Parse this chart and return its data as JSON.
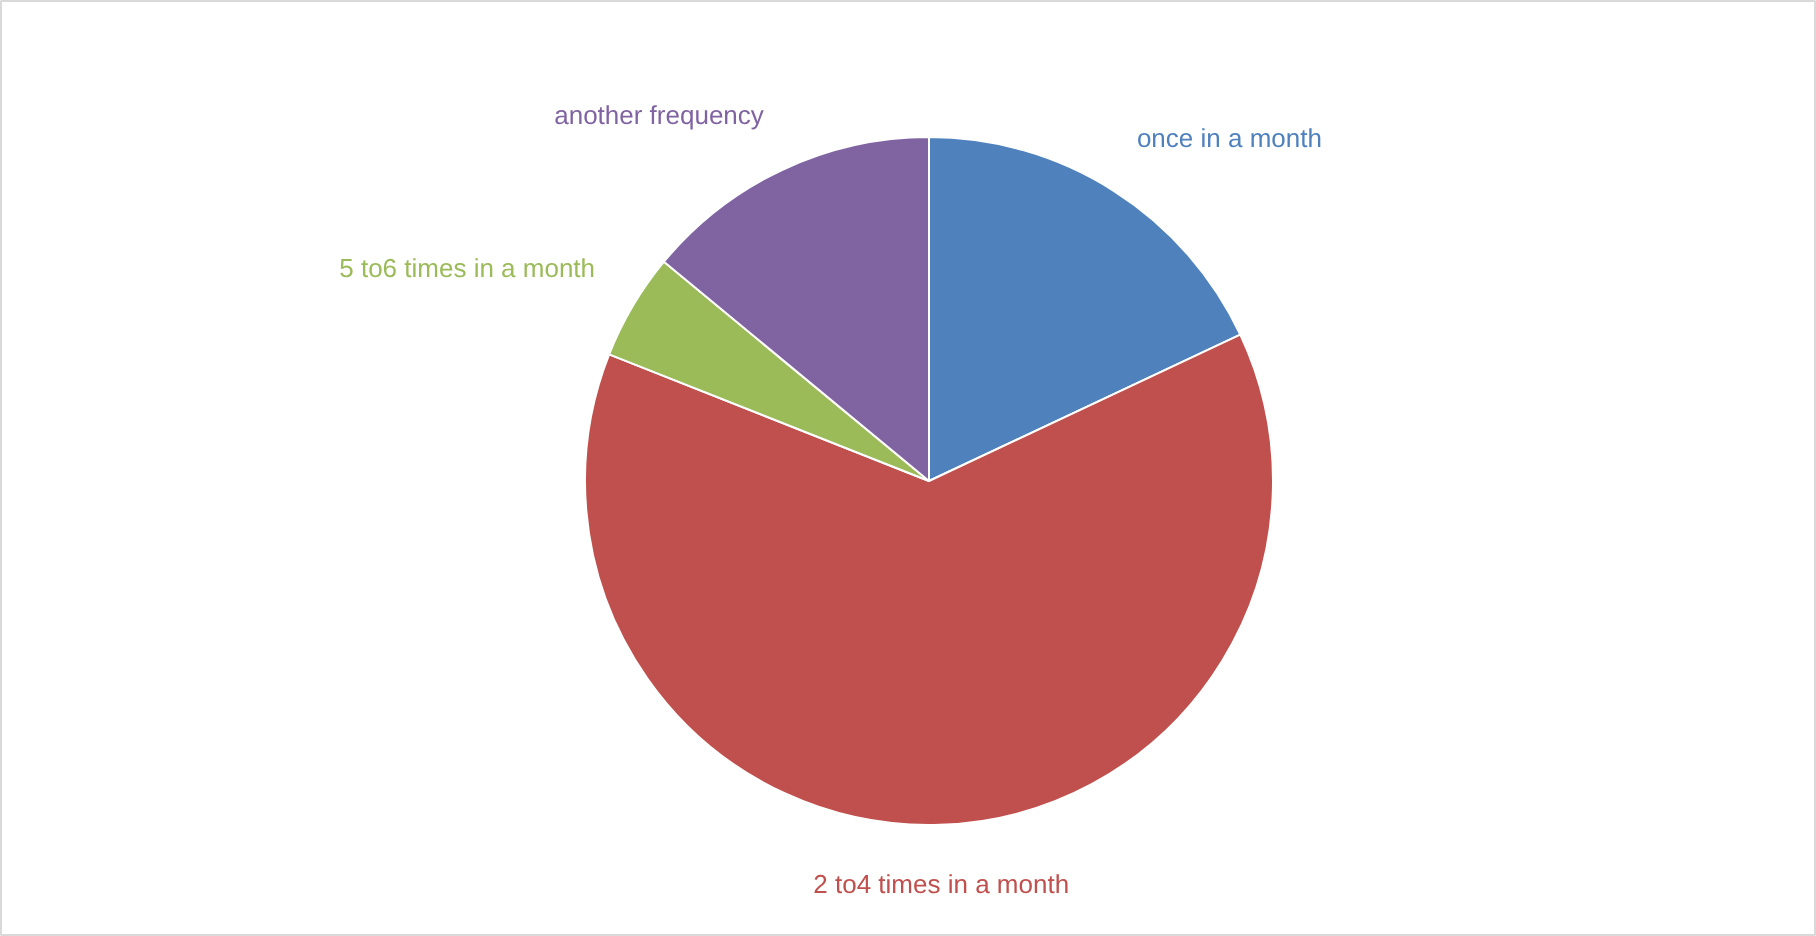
{
  "chart_data": {
    "type": "pie",
    "categories": [
      "once in a month",
      "2 to4 times in a month",
      "5 to6 times in a month",
      "another frequency"
    ],
    "values": [
      18,
      63,
      5,
      14
    ],
    "colors": [
      "#4f81bd",
      "#c0504d",
      "#9bbb59",
      "#8064a2"
    ]
  }
}
